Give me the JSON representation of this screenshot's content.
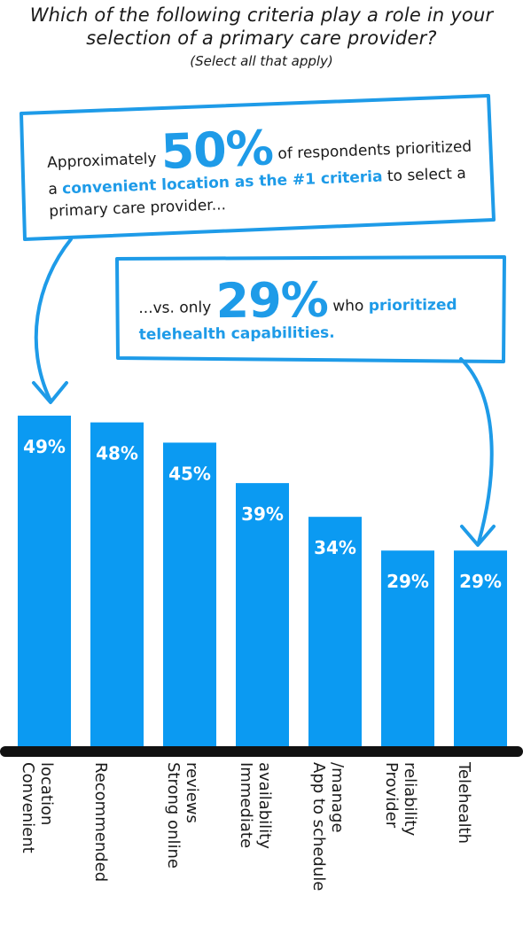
{
  "title_line1": "Which of the following criteria play a role in your",
  "title_line2": "selection of a primary care provider?",
  "subtitle": "(Select all that apply)",
  "callout1": {
    "pre": "Approximately ",
    "big": "50%",
    "mid": " of respondents prioritized a ",
    "highlight": "convenient location as the #1 criteria",
    "post": " to select a primary care provider..."
  },
  "callout2": {
    "pre": "...vs. only ",
    "big": "29%",
    "mid": " who ",
    "highlight": "prioritized telehealth capabilities."
  },
  "colors": {
    "bar": "#0b9af2",
    "accent": "#1e9be8",
    "baseline": "#111111"
  },
  "chart_data": {
    "type": "bar",
    "categories": [
      [
        "Convenient",
        "location"
      ],
      [
        "Recommended"
      ],
      [
        "Strong online",
        "reviews"
      ],
      [
        "Immediate",
        "availability"
      ],
      [
        "App to schedule",
        "/manage"
      ],
      [
        "Provider",
        "reliability"
      ],
      [
        "Telehealth"
      ]
    ],
    "values": [
      49,
      48,
      45,
      39,
      34,
      29,
      29
    ],
    "value_labels": [
      "49%",
      "48%",
      "45%",
      "39%",
      "34%",
      "29%",
      "29%"
    ],
    "ylim": [
      0,
      49
    ],
    "grid": false,
    "label_orientation": "vertical"
  }
}
